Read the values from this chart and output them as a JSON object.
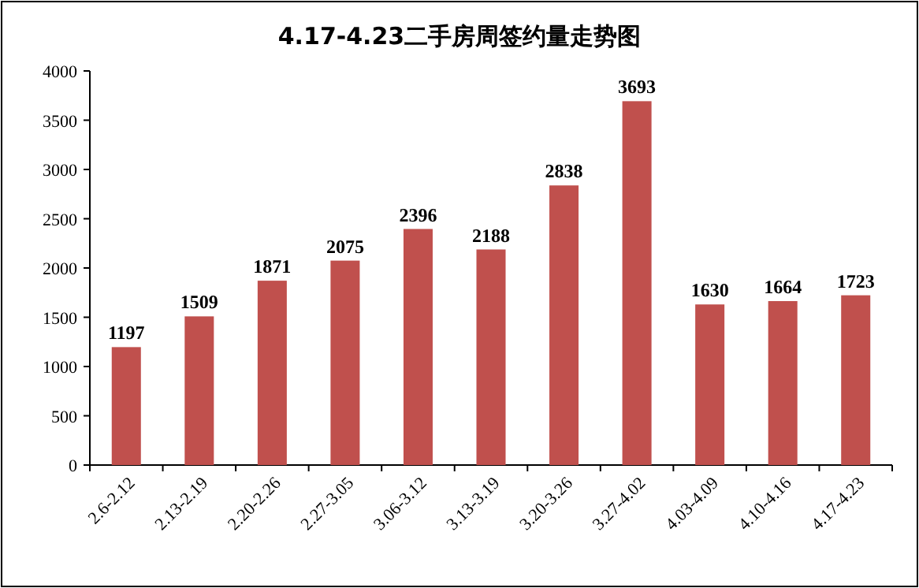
{
  "chart_data": {
    "type": "bar",
    "title": "4.17-4.23二手房周签约量走势图",
    "categories": [
      "2.6-2.12",
      "2.13-2.19",
      "2.20-2.26",
      "2.27-3.05",
      "3.06-3.12",
      "3.13-3.19",
      "3.20-3.26",
      "3.27-4.02",
      "4.03-4.09",
      "4.10-4.16",
      "4.17-4.23"
    ],
    "values": [
      1197,
      1509,
      1871,
      2075,
      2396,
      2188,
      2838,
      3693,
      1630,
      1664,
      1723
    ],
    "color": "#c0504d",
    "ylim": [
      0,
      4000
    ],
    "yticks": [
      0,
      500,
      1000,
      1500,
      2000,
      2500,
      3000,
      3500,
      4000
    ],
    "data_labels": true
  }
}
